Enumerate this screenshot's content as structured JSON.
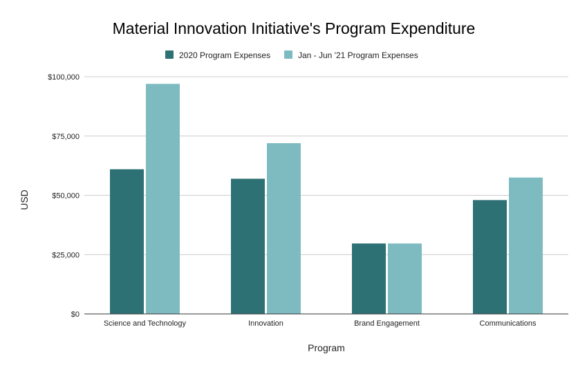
{
  "chart_data": {
    "type": "bar",
    "title": "Material Innovation Initiative's Program Expenditure",
    "xlabel": "Program",
    "ylabel": "USD",
    "categories": [
      "Science and Technology",
      "Innovation",
      "Brand Engagement",
      "Communications"
    ],
    "series": [
      {
        "name": "2020 Program Expenses",
        "color": "#2e7175",
        "values": [
          61000,
          57000,
          29700,
          48000
        ]
      },
      {
        "name": "Jan - Jun '21 Program Expenses",
        "color": "#7dbbc1",
        "values": [
          97000,
          72000,
          29700,
          57500
        ]
      }
    ],
    "ylim": [
      0,
      100000
    ],
    "yticks": [
      0,
      25000,
      50000,
      75000,
      100000
    ],
    "ytick_labels": [
      "$0",
      "$25,000",
      "$50,000",
      "$75,000",
      "$100,000"
    ],
    "grid": true,
    "legend_position": "top"
  }
}
